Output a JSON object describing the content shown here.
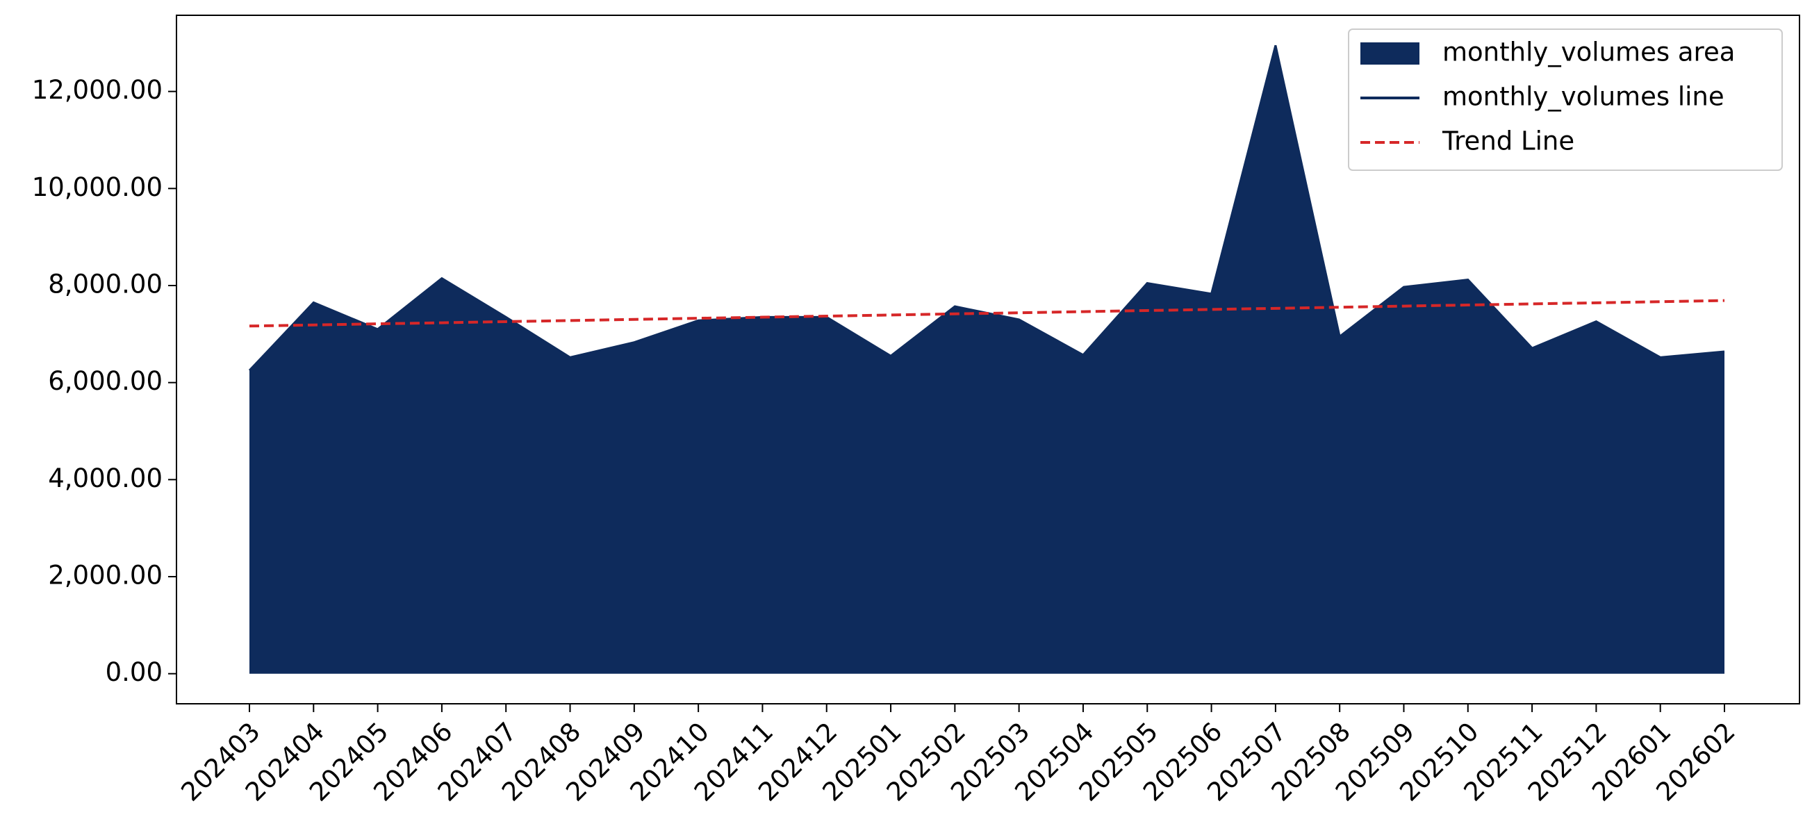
{
  "chart_data": {
    "type": "area",
    "categories": [
      "202403",
      "202404",
      "202405",
      "202406",
      "202407",
      "202408",
      "202409",
      "202410",
      "202411",
      "202412",
      "202501",
      "202502",
      "202503",
      "202504",
      "202505",
      "202506",
      "202507",
      "202508",
      "202509",
      "202510",
      "202511",
      "202512",
      "202601",
      "202602"
    ],
    "series": [
      {
        "name": "monthly_volumes area",
        "color": "#0e2b5c",
        "kind": "area",
        "values": [
          6250,
          7650,
          7100,
          8150,
          7350,
          6520,
          6830,
          7280,
          7350,
          7350,
          6550,
          7570,
          7300,
          6570,
          8050,
          7830,
          12950,
          6950,
          7970,
          8120,
          6710,
          7260,
          6520,
          6640
        ]
      },
      {
        "name": "monthly_volumes line",
        "color": "#0e2b5c",
        "kind": "line",
        "values": [
          6250,
          7650,
          7100,
          8150,
          7350,
          6520,
          6830,
          7280,
          7350,
          7350,
          6550,
          7570,
          7300,
          6570,
          8050,
          7830,
          12950,
          6950,
          7970,
          8120,
          6710,
          7260,
          6520,
          6640
        ]
      },
      {
        "name": "Trend Line",
        "color": "#d62728",
        "kind": "dashed",
        "values": [
          7165,
          7188,
          7211,
          7233,
          7256,
          7279,
          7302,
          7325,
          7348,
          7370,
          7393,
          7416,
          7439,
          7462,
          7485,
          7507,
          7530,
          7553,
          7576,
          7599,
          7622,
          7644,
          7667,
          7690
        ]
      }
    ],
    "ylim": [
      -620,
      13570
    ],
    "yticks": [
      {
        "value": 0,
        "label": "0.00"
      },
      {
        "value": 2000,
        "label": "2,000.00"
      },
      {
        "value": 4000,
        "label": "4,000.00"
      },
      {
        "value": 6000,
        "label": "6,000.00"
      },
      {
        "value": 8000,
        "label": "8,000.00"
      },
      {
        "value": 10000,
        "label": "10,000.00"
      },
      {
        "value": 12000,
        "label": "12,000.00"
      }
    ],
    "legend": "upper right"
  }
}
